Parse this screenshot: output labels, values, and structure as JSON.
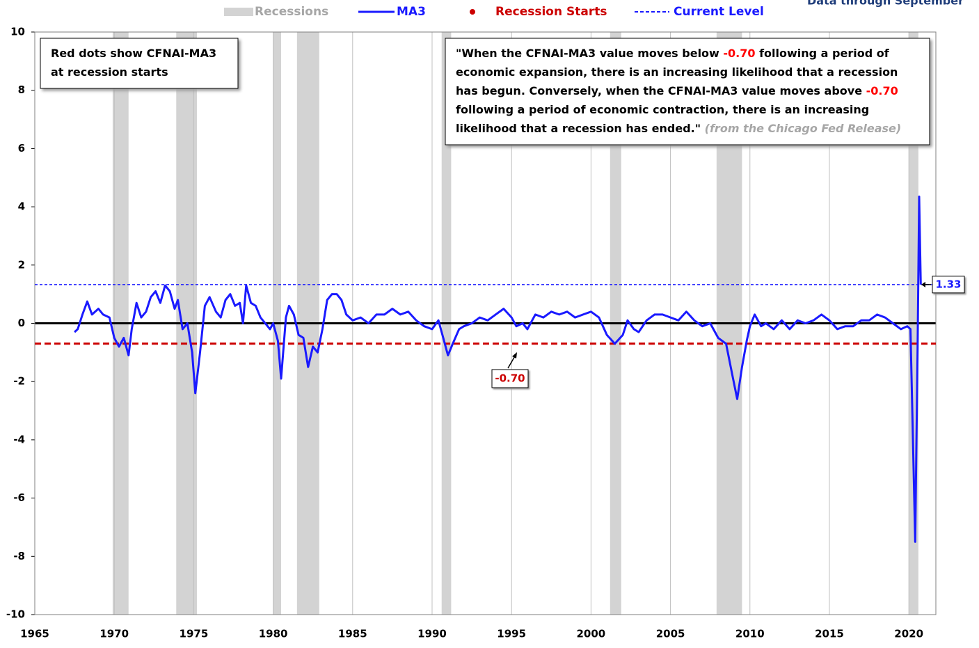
{
  "chart_data": {
    "type": "line",
    "subtitle": "Data through September",
    "xlim": [
      1965,
      2021.7
    ],
    "ylim": [
      -10,
      10
    ],
    "xticks": [
      1965,
      1970,
      1975,
      1980,
      1985,
      1990,
      1995,
      2000,
      2005,
      2010,
      2015,
      2020
    ],
    "yticks": [
      10,
      8,
      6,
      4,
      2,
      0,
      -2,
      -4,
      -6,
      -8,
      -10
    ],
    "grid": true,
    "recessions": {
      "name": "Recessions",
      "color": "#d3d3d3",
      "spans": [
        [
          1969.9,
          1970.9
        ],
        [
          1973.9,
          1975.2
        ],
        [
          1980.0,
          1980.5
        ],
        [
          1981.5,
          1982.9
        ],
        [
          1990.6,
          1991.2
        ],
        [
          2001.2,
          2001.9
        ],
        [
          2007.9,
          2009.5
        ],
        [
          2020.0,
          2020.6
        ]
      ]
    },
    "recession_starts": {
      "name": "Recession Starts",
      "color": "#cc0000"
    },
    "reference_lines": [
      {
        "name": "Current Level",
        "value": 1.33,
        "label": "1.33",
        "color": "#1a1aff"
      },
      {
        "value": -0.7,
        "label": "-0.70",
        "color": "#cc0000"
      }
    ],
    "x": [
      1967.5,
      1967.7,
      1968.0,
      1968.3,
      1968.6,
      1969.0,
      1969.3,
      1969.7,
      1970.0,
      1970.3,
      1970.6,
      1970.9,
      1971.1,
      1971.4,
      1971.7,
      1972.0,
      1972.3,
      1972.6,
      1972.9,
      1973.2,
      1973.5,
      1973.8,
      1974.0,
      1974.3,
      1974.6,
      1974.9,
      1975.1,
      1975.4,
      1975.7,
      1976.0,
      1976.4,
      1976.7,
      1977.0,
      1977.3,
      1977.6,
      1977.9,
      1978.1,
      1978.3,
      1978.6,
      1978.9,
      1979.2,
      1979.5,
      1979.8,
      1980.0,
      1980.3,
      1980.5,
      1980.8,
      1981.0,
      1981.3,
      1981.6,
      1981.9,
      1982.2,
      1982.5,
      1982.8,
      1983.1,
      1983.4,
      1983.7,
      1984.0,
      1984.3,
      1984.6,
      1985.0,
      1985.5,
      1986.0,
      1986.5,
      1987.0,
      1987.5,
      1988.0,
      1988.5,
      1989.0,
      1989.5,
      1990.0,
      1990.4,
      1990.7,
      1991.0,
      1991.3,
      1991.7,
      1992.0,
      1992.5,
      1993.0,
      1993.5,
      1994.0,
      1994.5,
      1995.0,
      1995.3,
      1995.7,
      1996.0,
      1996.5,
      1997.0,
      1997.5,
      1998.0,
      1998.5,
      1999.0,
      1999.5,
      2000.0,
      2000.5,
      2001.0,
      2001.5,
      2002.0,
      2002.3,
      2002.7,
      2003.0,
      2003.5,
      2004.0,
      2004.5,
      2005.0,
      2005.5,
      2006.0,
      2006.5,
      2007.0,
      2007.5,
      2008.0,
      2008.5,
      2008.9,
      2009.2,
      2009.5,
      2009.8,
      2010.0,
      2010.3,
      2010.7,
      2011.0,
      2011.5,
      2012.0,
      2012.5,
      2013.0,
      2013.5,
      2014.0,
      2014.5,
      2015.0,
      2015.5,
      2016.0,
      2016.5,
      2017.0,
      2017.5,
      2018.0,
      2018.5,
      2019.0,
      2019.5,
      2019.9,
      2020.1,
      2020.3,
      2020.4,
      2020.55,
      2020.65,
      2020.75
    ],
    "series": [
      {
        "name": "MA3",
        "color": "#1a1aff",
        "values": [
          -0.3,
          -0.2,
          0.3,
          0.75,
          0.3,
          0.5,
          0.3,
          0.2,
          -0.5,
          -0.8,
          -0.5,
          -1.1,
          -0.2,
          0.7,
          0.2,
          0.4,
          0.9,
          1.1,
          0.7,
          1.3,
          1.1,
          0.5,
          0.8,
          -0.2,
          0.0,
          -1.0,
          -2.4,
          -1.0,
          0.6,
          0.9,
          0.4,
          0.2,
          0.8,
          1.0,
          0.6,
          0.7,
          0.0,
          1.3,
          0.7,
          0.6,
          0.2,
          0.0,
          -0.2,
          0.0,
          -0.6,
          -1.9,
          0.2,
          0.6,
          0.3,
          -0.4,
          -0.5,
          -1.5,
          -0.8,
          -1.0,
          -0.2,
          0.8,
          1.0,
          1.0,
          0.8,
          0.3,
          0.1,
          0.2,
          0.0,
          0.3,
          0.3,
          0.5,
          0.3,
          0.4,
          0.1,
          -0.1,
          -0.2,
          0.1,
          -0.5,
          -1.1,
          -0.7,
          -0.2,
          -0.1,
          0.0,
          0.2,
          0.1,
          0.3,
          0.5,
          0.2,
          -0.1,
          0.0,
          -0.2,
          0.3,
          0.2,
          0.4,
          0.3,
          0.4,
          0.2,
          0.3,
          0.4,
          0.2,
          -0.4,
          -0.7,
          -0.4,
          0.1,
          -0.2,
          -0.3,
          0.1,
          0.3,
          0.3,
          0.2,
          0.1,
          0.4,
          0.1,
          -0.1,
          0.0,
          -0.5,
          -0.7,
          -1.8,
          -2.6,
          -1.5,
          -0.6,
          -0.1,
          0.3,
          -0.1,
          0.0,
          -0.2,
          0.1,
          -0.2,
          0.1,
          0.0,
          0.1,
          0.3,
          0.1,
          -0.2,
          -0.1,
          -0.1,
          0.1,
          0.1,
          0.3,
          0.2,
          0.0,
          -0.2,
          -0.1,
          -0.2,
          -5.0,
          -7.5,
          -1.0,
          4.35,
          1.33
        ]
      }
    ],
    "notes": [
      {
        "lines": [
          [
            {
              "text": "Red dots show CFNAI-MA3"
            }
          ],
          [
            {
              "text": "at recession starts"
            }
          ]
        ]
      },
      {
        "lines": [
          [
            {
              "text": "\"When the CFNAI-MA3 value moves below "
            },
            {
              "text": "-0.70",
              "color": "#ff0000"
            },
            {
              "text": " following a period of"
            }
          ],
          [
            {
              "text": "economic expansion, there is an increasing likelihood that a recession"
            }
          ],
          [
            {
              "text": "has begun. Conversely, when the CFNAI-MA3 value moves above "
            },
            {
              "text": "-0.70",
              "color": "#ff0000"
            }
          ],
          [
            {
              "text": "following a period of economic contraction, there is an increasing"
            }
          ],
          [
            {
              "text": "likelihood that a recession has ended.\" "
            },
            {
              "text": "(from the Chicago Fed Release)",
              "color": "#a6a6a6",
              "italic": true
            }
          ]
        ]
      }
    ]
  }
}
